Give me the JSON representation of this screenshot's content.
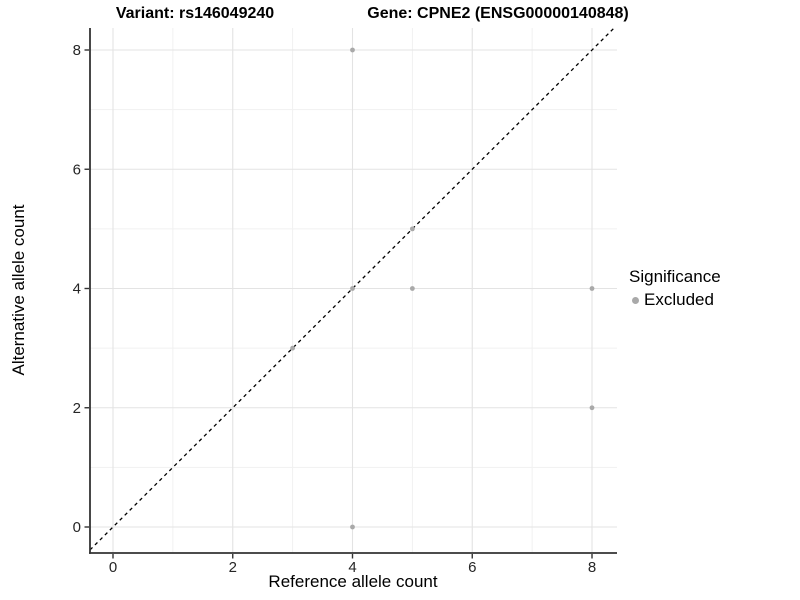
{
  "header": {
    "variant_title": "Variant: rs146049240",
    "gene_title": "Gene: CPNE2 (ENSG00000140848)"
  },
  "axes": {
    "x": {
      "label": "Reference allele count",
      "tick_labels": [
        "0",
        "2",
        "4",
        "6",
        "8"
      ],
      "tick_values": [
        0,
        2,
        4,
        6,
        8
      ],
      "minor_tick_values": [
        1,
        3,
        5,
        7
      ]
    },
    "y": {
      "label": "Alternative allele count",
      "tick_labels": [
        "0",
        "2",
        "4",
        "6",
        "8"
      ],
      "tick_values": [
        0,
        2,
        4,
        6,
        8
      ],
      "minor_tick_values": [
        1,
        3,
        5,
        7
      ]
    }
  },
  "legend": {
    "title": "Significance",
    "items": [
      {
        "label": "Excluded",
        "marker": "circle-icon",
        "color": "#a9a9a9"
      }
    ]
  },
  "chart_data": {
    "type": "scatter",
    "title": "Variant: rs146049240 | Gene: CPNE2 (ENSG00000140848)",
    "xlabel": "Reference allele count",
    "ylabel": "Alternative allele count",
    "xlim": [
      -0.4,
      8.4
    ],
    "ylim": [
      -0.44,
      8.37
    ],
    "grid": "major and minor gridlines on",
    "legend_position": "right-center",
    "series": [
      {
        "name": "Excluded",
        "color": "#a9a9a9",
        "points": [
          [
            3,
            3
          ],
          [
            4,
            0
          ],
          [
            4,
            4
          ],
          [
            4,
            8
          ],
          [
            5,
            4
          ],
          [
            5,
            5
          ],
          [
            8,
            2
          ],
          [
            8,
            4
          ]
        ]
      }
    ],
    "reference_line": {
      "kind": "identity",
      "slope": 1,
      "intercept": 0,
      "style": "dashed",
      "color": "#000000"
    }
  },
  "colors": {
    "background": "#ffffff",
    "grid_major": "#e3e3e3",
    "grid_minor": "#f1f1f1",
    "axis_line": "#333333",
    "tick_text": "#262626",
    "point": "#a9a9a9",
    "reference_line": "#000000"
  }
}
